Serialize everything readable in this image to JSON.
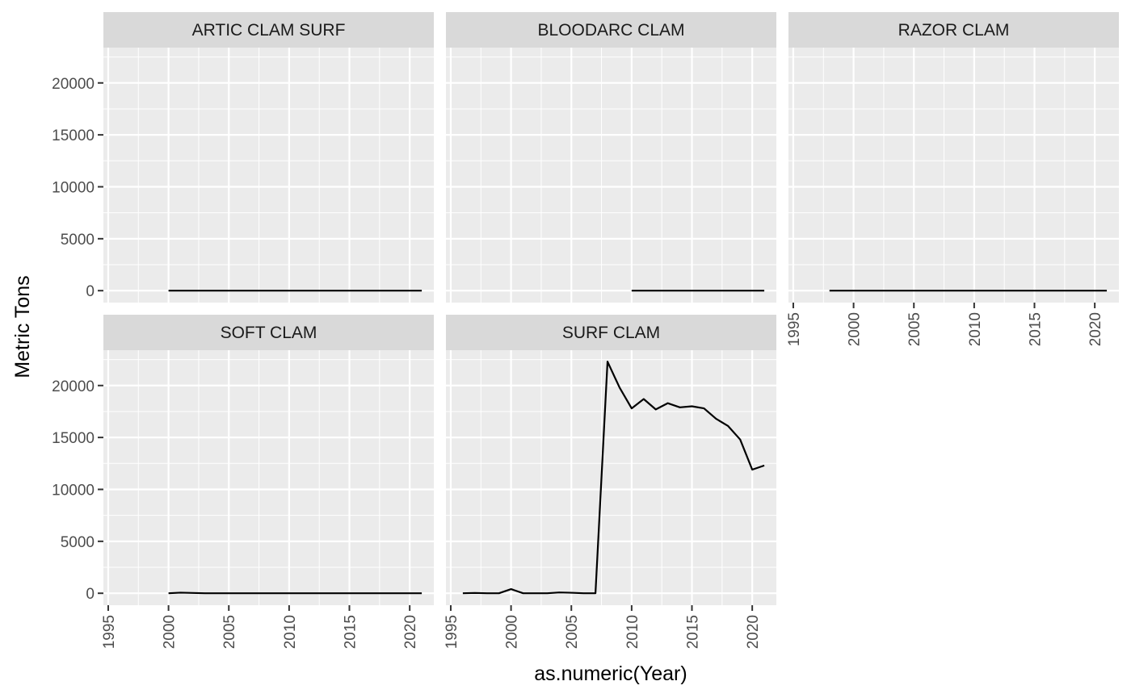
{
  "chart_data": {
    "type": "line",
    "layout": "facet_wrap",
    "xlabel": "as.numeric(Year)",
    "ylabel": "Metric Tons",
    "xlim": [
      1994.6,
      2022.0
    ],
    "ylim": [
      -1150,
      23400
    ],
    "x_ticks": [
      1995,
      2000,
      2005,
      2010,
      2015,
      2020
    ],
    "y_ticks": [
      0,
      5000,
      10000,
      15000,
      20000
    ],
    "grid": true,
    "legend": "none",
    "line_color": "#000000",
    "panel_background": "#ebebeb",
    "strip_background": "#d9d9d9",
    "panels": [
      {
        "name": "ARTIC CLAM SURF",
        "x": [
          2000,
          2002,
          2004,
          2006,
          2008,
          2010,
          2012,
          2014,
          2016,
          2018,
          2021
        ],
        "y": [
          0,
          0,
          0,
          0,
          0,
          0,
          0,
          0,
          0,
          0,
          0
        ]
      },
      {
        "name": "BLOODARC CLAM",
        "x": [
          2010,
          2012,
          2014,
          2016,
          2018,
          2021
        ],
        "y": [
          0,
          0,
          0,
          0,
          0,
          0
        ]
      },
      {
        "name": "RAZOR CLAM",
        "x": [
          1998,
          2000,
          2002,
          2004,
          2006,
          2008,
          2010,
          2012,
          2014,
          2016,
          2018,
          2021
        ],
        "y": [
          0,
          0,
          0,
          0,
          0,
          0,
          0,
          0,
          0,
          0,
          0,
          0
        ]
      },
      {
        "name": "SOFT CLAM",
        "x": [
          2000,
          2001,
          2002,
          2003,
          2004,
          2006,
          2008,
          2010,
          2012,
          2014,
          2016,
          2018,
          2021
        ],
        "y": [
          0,
          60,
          30,
          0,
          0,
          0,
          0,
          0,
          0,
          0,
          0,
          0,
          0
        ]
      },
      {
        "name": "SURF CLAM",
        "x": [
          1996,
          1997,
          1998,
          1999,
          2000,
          2001,
          2002,
          2003,
          2004,
          2005,
          2006,
          2007,
          2008,
          2009,
          2010,
          2011,
          2012,
          2013,
          2014,
          2015,
          2016,
          2017,
          2018,
          2019,
          2020,
          2021
        ],
        "y": [
          0,
          30,
          0,
          0,
          400,
          0,
          0,
          0,
          80,
          50,
          0,
          0,
          22300,
          19800,
          17800,
          18700,
          17700,
          18300,
          17900,
          18000,
          17800,
          16800,
          16100,
          14800,
          11900,
          12300
        ]
      }
    ]
  }
}
